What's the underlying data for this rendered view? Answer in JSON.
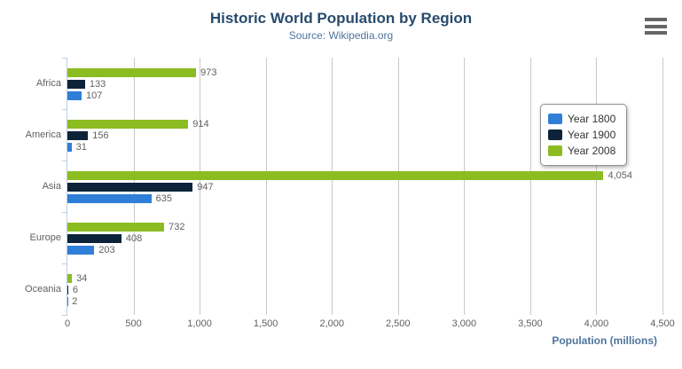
{
  "header": {
    "title": "Historic World Population by Region",
    "subtitle": "Source: Wikipedia.org"
  },
  "icons": {
    "menu": "hamburger-icon"
  },
  "colors": {
    "title": "#274b6d",
    "subtitle": "#4d759e",
    "axis_labels": "#606060",
    "axis_line": "#c0d0e0",
    "gridline": "#c9c9c9",
    "legend_text": "#333333",
    "series_1800": "#2f7ed8",
    "series_1900": "#0d233a",
    "series_2008": "#8bbc21"
  },
  "chart_data": {
    "type": "bar",
    "orientation": "horizontal",
    "title": "Historic World Population by Region",
    "subtitle": "Source: Wikipedia.org",
    "categories": [
      "Africa",
      "America",
      "Asia",
      "Europe",
      "Oceania"
    ],
    "series": [
      {
        "name": "Year 1800",
        "color": "#2f7ed8",
        "values": [
          107,
          31,
          635,
          203,
          2
        ]
      },
      {
        "name": "Year 1900",
        "color": "#0d233a",
        "values": [
          133,
          156,
          947,
          408,
          6
        ]
      },
      {
        "name": "Year 2008",
        "color": "#8bbc21",
        "values": [
          973,
          914,
          4054,
          732,
          34
        ]
      }
    ],
    "bars_order_top_to_bottom": [
      "Year 2008",
      "Year 1900",
      "Year 1800"
    ],
    "data_labels_shown": true,
    "xlabel": "Population (millions)",
    "ylabel": "",
    "xlim": [
      0,
      4500
    ],
    "tick_interval": 500,
    "tick_labels": [
      "0",
      "500",
      "1,000",
      "1,500",
      "2,000",
      "2,500",
      "3,000",
      "3,500",
      "4,000",
      "4,500"
    ],
    "grid": true,
    "legend_position": "right-middle"
  }
}
